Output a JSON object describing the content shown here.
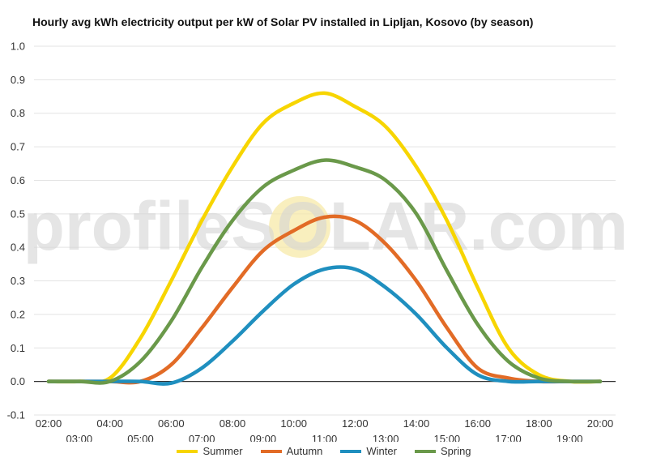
{
  "chart_data": {
    "type": "line",
    "title": "Hourly avg kWh electricity output per kW of Solar PV installed in Lipljan, Kosovo (by season)",
    "xlabel": "",
    "ylabel": "",
    "watermark": "profileSOLAR.com",
    "ylim": [
      -0.1,
      1.0
    ],
    "yticks": [
      "1.0",
      "0.9",
      "0.8",
      "0.7",
      "0.6",
      "0.5",
      "0.4",
      "0.3",
      "0.2",
      "0.1",
      "0.0",
      "-0.1"
    ],
    "ytick_values": [
      1.0,
      0.9,
      0.8,
      0.7,
      0.6,
      0.5,
      0.4,
      0.3,
      0.2,
      0.1,
      0.0,
      -0.1
    ],
    "grid": true,
    "legend_position": "bottom",
    "x": [
      "02:00",
      "03:00",
      "04:00",
      "05:00",
      "06:00",
      "07:00",
      "08:00",
      "09:00",
      "10:00",
      "11:00",
      "12:00",
      "13:00",
      "14:00",
      "15:00",
      "16:00",
      "17:00",
      "18:00",
      "19:00",
      "20:00"
    ],
    "series": [
      {
        "name": "Summer",
        "color": "#f7d500",
        "values": [
          0.0,
          0.0,
          0.01,
          0.13,
          0.3,
          0.48,
          0.64,
          0.77,
          0.83,
          0.86,
          0.82,
          0.76,
          0.64,
          0.48,
          0.28,
          0.1,
          0.02,
          0.0,
          0.0
        ]
      },
      {
        "name": "Autumn",
        "color": "#e26b26",
        "values": [
          0.0,
          0.0,
          0.0,
          0.0,
          0.05,
          0.16,
          0.28,
          0.39,
          0.45,
          0.49,
          0.48,
          0.41,
          0.3,
          0.16,
          0.04,
          0.01,
          0.0,
          0.0,
          0.0
        ]
      },
      {
        "name": "Winter",
        "color": "#1f8fbf",
        "values": [
          0.0,
          0.0,
          0.0,
          0.0,
          -0.005,
          0.04,
          0.12,
          0.21,
          0.29,
          0.335,
          0.335,
          0.28,
          0.2,
          0.1,
          0.02,
          0.0,
          0.0,
          0.0,
          0.0
        ]
      },
      {
        "name": "Spring",
        "color": "#6a994a",
        "values": [
          0.0,
          0.0,
          0.0,
          0.06,
          0.18,
          0.34,
          0.48,
          0.58,
          0.63,
          0.66,
          0.64,
          0.6,
          0.5,
          0.33,
          0.17,
          0.06,
          0.01,
          0.0,
          0.0
        ]
      }
    ]
  }
}
